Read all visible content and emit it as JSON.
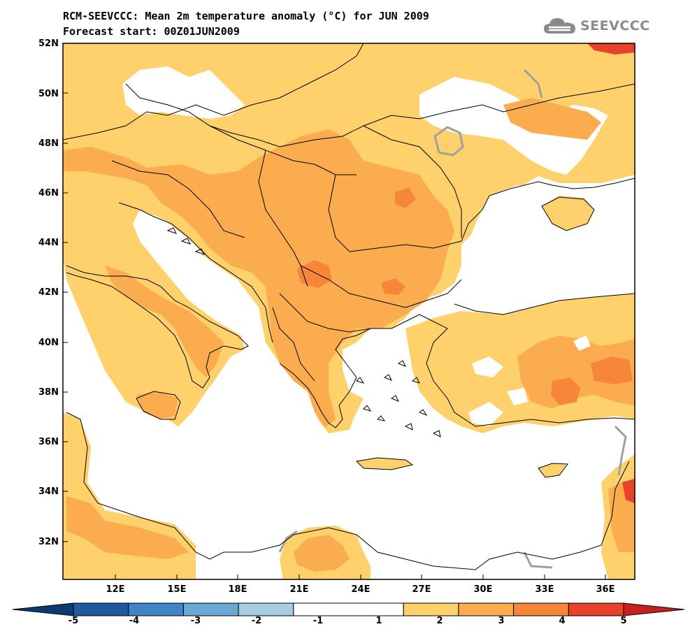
{
  "title": {
    "line1": "RCM-SEEVCCC: Mean 2m temperature anomaly (°C) for JUN 2009",
    "line2": "Forecast start: 00Z01JUN2009"
  },
  "logo": {
    "text": "SEEVCCC",
    "icon": "cloud-icon"
  },
  "colors": {
    "c1_2": "#fed16d",
    "c2_3": "#fbac4f",
    "c3_4": "#f6863a",
    "c4_5": "#e8422a",
    "cm1_m2": "#a6cde3",
    "cm2_m3": "#6aa8d6",
    "cm3_m4": "#3f84c4",
    "cm4_m5": "#1f5a9e",
    "neutral": "#ffffff",
    "land_border": "#000000",
    "contour_gray": "#a0a0a0"
  },
  "axes": {
    "lat_labels": [
      "52N",
      "50N",
      "48N",
      "46N",
      "44N",
      "42N",
      "40N",
      "38N",
      "36N",
      "34N",
      "32N"
    ],
    "lon_labels": [
      "12E",
      "15E",
      "18E",
      "21E",
      "24E",
      "27E",
      "30E",
      "33E",
      "36E"
    ]
  },
  "colorbar": {
    "labels": [
      "-5",
      "-4",
      "-3",
      "-2",
      "-1",
      "1",
      "2",
      "3",
      "4",
      "5"
    ],
    "bins": [
      {
        "from": -5,
        "to": -4,
        "color": "#1f5a9e"
      },
      {
        "from": -4,
        "to": -3,
        "color": "#3f84c4"
      },
      {
        "from": -3,
        "to": -2,
        "color": "#6aa8d6"
      },
      {
        "from": -2,
        "to": -1,
        "color": "#a6cde3"
      },
      {
        "from": -1,
        "to": 1,
        "color": "#ffffff"
      },
      {
        "from": 1,
        "to": 2,
        "color": "#fed16d"
      },
      {
        "from": 2,
        "to": 3,
        "color": "#fbac4f"
      },
      {
        "from": 3,
        "to": 4,
        "color": "#f6863a"
      },
      {
        "from": 4,
        "to": 5,
        "color": "#e8422a"
      }
    ],
    "low_color": "#0d3a73",
    "high_color": "#c81f1f"
  }
}
